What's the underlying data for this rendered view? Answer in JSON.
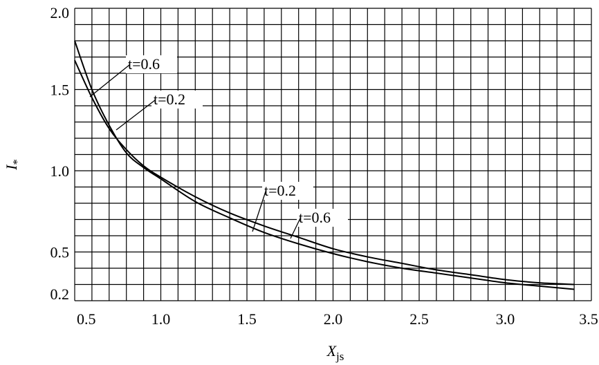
{
  "chart_data": {
    "type": "line",
    "xlabel": {
      "text": "X",
      "subscript": "js"
    },
    "ylabel": {
      "text": "I",
      "subscript": "*"
    },
    "x": [
      0.5,
      0.6,
      0.7,
      0.8,
      0.9,
      1.0,
      1.2,
      1.4,
      1.6,
      1.8,
      2.0,
      2.2,
      2.4,
      2.6,
      2.8,
      3.0,
      3.2,
      3.4
    ],
    "series": [
      {
        "name": "t=0.6",
        "color": "#000000",
        "values": [
          1.8,
          1.5,
          1.28,
          1.11,
          1.02,
          0.95,
          0.81,
          0.71,
          0.62,
          0.55,
          0.49,
          0.44,
          0.4,
          0.37,
          0.34,
          0.31,
          0.29,
          0.27
        ]
      },
      {
        "name": "t=0.2",
        "color": "#000000",
        "values": [
          1.68,
          1.45,
          1.26,
          1.13,
          1.03,
          0.96,
          0.84,
          0.74,
          0.66,
          0.59,
          0.52,
          0.47,
          0.43,
          0.39,
          0.36,
          0.33,
          0.31,
          0.3
        ]
      }
    ],
    "annotations": [
      "t=0.6",
      "t=0.2",
      "t=0.2",
      "t=0.6"
    ],
    "xlim": [
      0.5,
      3.5
    ],
    "ylim": [
      0.2,
      2.0
    ],
    "xticks": [
      0.5,
      {
        "value": 1.0,
        "label": "1.0"
      },
      1.5,
      {
        "value": 2.0,
        "label": "2.0"
      },
      2.5,
      {
        "value": 3.0,
        "label": "3.0"
      },
      3.5
    ],
    "yticks": [
      0.2,
      0.5,
      {
        "value": 1.0,
        "label": "1.0"
      },
      1.5,
      {
        "value": 2.0,
        "label": "2.0"
      }
    ],
    "xgrid": [
      0.5,
      0.6,
      0.7,
      0.8,
      0.9,
      1.0,
      1.1,
      1.2,
      1.3,
      1.4,
      1.5,
      1.6,
      1.7,
      1.8,
      1.9,
      2.0,
      2.1,
      2.2,
      2.3,
      2.4,
      2.5,
      2.6,
      2.7,
      2.8,
      2.9,
      3.0,
      3.1,
      3.2,
      3.3,
      3.4,
      3.5
    ],
    "ygrid": [
      0.2,
      0.3,
      0.4,
      0.5,
      0.6,
      0.7,
      0.8,
      0.9,
      1.0,
      1.1,
      1.2,
      1.3,
      1.4,
      1.5,
      1.6,
      1.7,
      1.8,
      1.9,
      2.0
    ],
    "grid": true
  }
}
